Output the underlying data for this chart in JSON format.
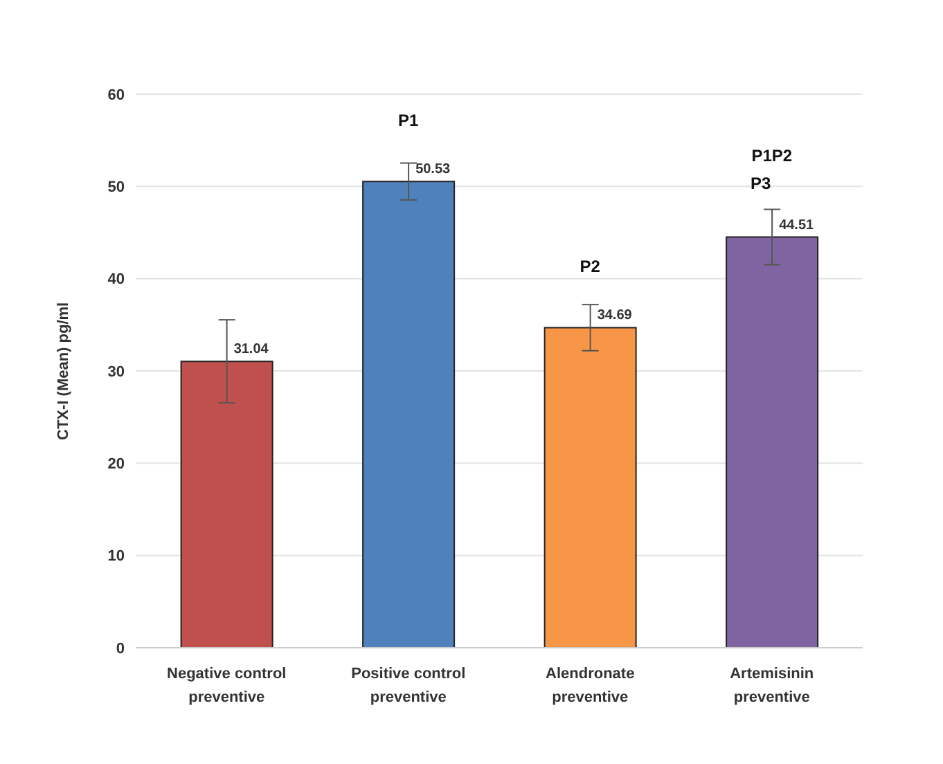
{
  "chart_data": {
    "type": "bar",
    "ylabel": "CTX-I (Mean) pg/ml",
    "categories": [
      "Negative control preventive",
      "Positive control preventive",
      "Alendronate preventive",
      "Artemisinin preventive"
    ],
    "values": [
      31.04,
      50.53,
      34.69,
      44.51
    ],
    "colors": [
      "#c0504d",
      "#4f81bd",
      "#f79646",
      "#8064a2"
    ],
    "errors": [
      4.5,
      2,
      2.5,
      3
    ],
    "data_labels": true,
    "ylim": [
      0,
      60
    ],
    "yticks": [
      0,
      10,
      20,
      30,
      40,
      50,
      60
    ],
    "grid": "y",
    "annotations": [
      "P1",
      "P2",
      "P1P2",
      "P3"
    ]
  }
}
